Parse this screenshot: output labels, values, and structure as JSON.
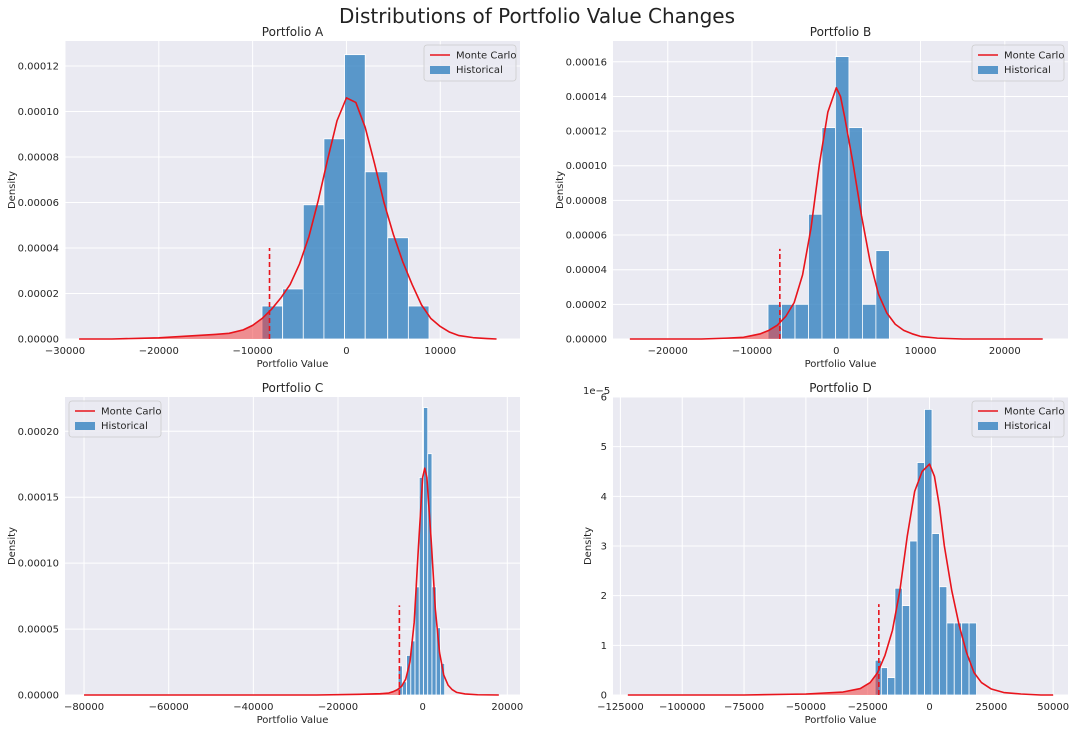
{
  "figure": {
    "title": "Distributions of Portfolio Value Changes"
  },
  "colors": {
    "plot_bg": "#eaeaf2",
    "grid": "#ffffff",
    "hist": "#2f7fbf",
    "kde": "#e8141c",
    "var_fill": "#f04040"
  },
  "chart_data": [
    {
      "type": "histogram+kde",
      "title": "Portfolio A",
      "xlabel": "Portfolio Value",
      "ylabel": "Density",
      "xlim": [
        -30000,
        18500
      ],
      "ylim": [
        0,
        0.000131
      ],
      "xticks": [
        -30000,
        -20000,
        -10000,
        0,
        10000
      ],
      "xtick_labels": [
        "−30000",
        "−20000",
        "−10000",
        "0",
        "10000"
      ],
      "yticks": [
        0,
        2e-05,
        4e-05,
        6e-05,
        8e-05,
        0.0001,
        0.00012
      ],
      "ytick_labels": [
        "0.00000",
        "0.00002",
        "0.00004",
        "0.00006",
        "0.00008",
        "0.00010",
        "0.00012"
      ],
      "legend": {
        "position": "top-right",
        "entries": [
          "Monte Carlo",
          "Historical"
        ]
      },
      "grid": true,
      "bins": [
        {
          "x0": -9000,
          "x1": -6800,
          "density": 1.45e-05
        },
        {
          "x0": -6800,
          "x1": -4600,
          "density": 2.2e-05
        },
        {
          "x0": -4600,
          "x1": -2400,
          "density": 5.9e-05
        },
        {
          "x0": -2400,
          "x1": -200,
          "density": 8.8e-05
        },
        {
          "x0": -200,
          "x1": 2000,
          "density": 0.000125
        },
        {
          "x0": 2000,
          "x1": 4400,
          "density": 7.35e-05
        },
        {
          "x0": 4400,
          "x1": 6600,
          "density": 4.45e-05
        },
        {
          "x0": 6600,
          "x1": 8800,
          "density": 1.45e-05
        }
      ],
      "kde": {
        "x": [
          -28500,
          -25000,
          -22000,
          -20000,
          -18000,
          -16000,
          -14000,
          -12500,
          -11000,
          -10000,
          -9000,
          -8000,
          -7000,
          -6000,
          -5000,
          -4000,
          -3000,
          -2000,
          -1000,
          0,
          1000,
          2000,
          3000,
          4000,
          5000,
          6000,
          7000,
          8000,
          9000,
          10000,
          11000,
          12000,
          13500,
          15000,
          16000
        ],
        "y": [
          0,
          0,
          3e-07,
          5e-07,
          1e-06,
          1.5e-06,
          2e-06,
          2.5e-06,
          4e-06,
          6e-06,
          9e-06,
          1.3e-05,
          1.8e-05,
          2.4e-05,
          3.3e-05,
          4.5e-05,
          6.1e-05,
          7.9e-05,
          9.6e-05,
          0.000106,
          0.000104,
          9.3e-05,
          7.7e-05,
          6e-05,
          4.6e-05,
          3.4e-05,
          2.4e-05,
          1.5e-05,
          9e-06,
          5.5e-06,
          3e-06,
          1.5e-06,
          6e-07,
          2e-07,
          0
        ]
      },
      "var_threshold": -8200,
      "var_line_height": 4e-05
    },
    {
      "type": "histogram+kde",
      "title": "Portfolio B",
      "xlabel": "Portfolio Value",
      "ylabel": "Density",
      "xlim": [
        -26500,
        27500
      ],
      "ylim": [
        0,
        0.000172
      ],
      "xticks": [
        -20000,
        -10000,
        0,
        10000,
        20000
      ],
      "xtick_labels": [
        "−20000",
        "−10000",
        "0",
        "10000",
        "20000"
      ],
      "yticks": [
        0,
        2e-05,
        4e-05,
        6e-05,
        8e-05,
        0.0001,
        0.00012,
        0.00014,
        0.00016
      ],
      "ytick_labels": [
        "0.00000",
        "0.00002",
        "0.00004",
        "0.00006",
        "0.00008",
        "0.00010",
        "0.00012",
        "0.00014",
        "0.00016"
      ],
      "legend": {
        "position": "top-right",
        "entries": [
          "Monte Carlo",
          "Historical"
        ]
      },
      "grid": true,
      "bins": [
        {
          "x0": -8100,
          "x1": -6500,
          "density": 2e-05
        },
        {
          "x0": -6500,
          "x1": -4900,
          "density": 2e-05
        },
        {
          "x0": -4900,
          "x1": -3300,
          "density": 2e-05
        },
        {
          "x0": -3300,
          "x1": -1700,
          "density": 7.2e-05
        },
        {
          "x0": -1700,
          "x1": -100,
          "density": 0.000122
        },
        {
          "x0": -100,
          "x1": 1500,
          "density": 0.000163
        },
        {
          "x0": 1500,
          "x1": 3100,
          "density": 0.000122
        },
        {
          "x0": 3100,
          "x1": 4700,
          "density": 2e-05
        },
        {
          "x0": 4700,
          "x1": 6300,
          "density": 5.1e-05
        }
      ],
      "kde": {
        "x": [
          -24500,
          -20000,
          -16000,
          -13000,
          -11000,
          -10000,
          -9000,
          -8000,
          -7000,
          -6000,
          -5000,
          -4000,
          -3000,
          -2000,
          -1000,
          0,
          500,
          1000,
          2000,
          3000,
          4000,
          5000,
          6000,
          7000,
          8000,
          9000,
          10000,
          12000,
          15000,
          20000,
          24500
        ],
        "y": [
          0,
          0,
          0,
          5e-07,
          1e-06,
          2e-06,
          3e-06,
          5e-06,
          8e-06,
          1.3e-05,
          2.1e-05,
          3.7e-05,
          6.4e-05,
          0.000101,
          0.000131,
          0.000145,
          0.00014,
          0.000128,
          0.000101,
          7.1e-05,
          4.5e-05,
          2.6e-05,
          1.5e-05,
          8.5e-06,
          5e-06,
          3e-06,
          1.5e-06,
          5e-07,
          0,
          0,
          0
        ]
      },
      "var_threshold": -6700,
      "var_line_height": 5.2e-05
    },
    {
      "type": "histogram+kde",
      "title": "Portfolio C",
      "xlabel": "Portfolio Value",
      "ylabel": "Density",
      "xlim": [
        -84500,
        23000
      ],
      "ylim": [
        0,
        0.000226
      ],
      "xticks": [
        -80000,
        -60000,
        -40000,
        -20000,
        0,
        20000
      ],
      "xtick_labels": [
        "−80000",
        "−60000",
        "−40000",
        "−20000",
        "0",
        "20000"
      ],
      "yticks": [
        0,
        5e-05,
        0.0001,
        0.00015,
        0.0002
      ],
      "ytick_labels": [
        "0.00000",
        "0.00005",
        "0.00010",
        "0.00015",
        "0.00020"
      ],
      "legend": {
        "position": "top-left",
        "entries": [
          "Monte Carlo",
          "Historical"
        ]
      },
      "grid": true,
      "bins": [
        {
          "x0": -5800,
          "x1": -4800,
          "density": 2.2e-05
        },
        {
          "x0": -4800,
          "x1": -3800,
          "density": 1e-05
        },
        {
          "x0": -3800,
          "x1": -2800,
          "density": 3e-05
        },
        {
          "x0": -2800,
          "x1": -1800,
          "density": 4.1e-05
        },
        {
          "x0": -1800,
          "x1": -800,
          "density": 8.2e-05
        },
        {
          "x0": -800,
          "x1": 200,
          "density": 0.000165
        },
        {
          "x0": 200,
          "x1": 1200,
          "density": 0.000218
        },
        {
          "x0": 1200,
          "x1": 2200,
          "density": 0.000183
        },
        {
          "x0": 2200,
          "x1": 3200,
          "density": 8.2e-05
        },
        {
          "x0": 3200,
          "x1": 4200,
          "density": 5.1e-05
        },
        {
          "x0": 4200,
          "x1": 5200,
          "density": 2.4e-05
        }
      ],
      "kde": {
        "x": [
          -80000,
          -60000,
          -40000,
          -25000,
          -15000,
          -10000,
          -8000,
          -7000,
          -6000,
          -5000,
          -4000,
          -3000,
          -2000,
          -1000,
          0,
          500,
          1000,
          2000,
          3000,
          4000,
          5000,
          6000,
          7000,
          8000,
          10000,
          13000,
          18000
        ],
        "y": [
          0,
          0,
          0,
          0,
          5e-07,
          1e-06,
          1.5e-06,
          2.5e-06,
          4e-06,
          6.5e-06,
          1.2e-05,
          2.5e-05,
          5.5e-05,
          0.000112,
          0.000165,
          0.000172,
          0.000165,
          0.000118,
          6.5e-05,
          3.2e-05,
          1.5e-05,
          7.5e-06,
          4e-06,
          2e-06,
          8e-07,
          2e-07,
          0
        ]
      },
      "var_threshold": -5500,
      "var_line_height": 6.8e-05
    },
    {
      "type": "histogram+kde",
      "title": "Portfolio D",
      "xlabel": "Portfolio Value",
      "ylabel": "Density",
      "offset_label": "1e−5",
      "xlim": [
        -128000,
        56000
      ],
      "ylim": [
        0,
        6e-05
      ],
      "xticks": [
        -125000,
        -100000,
        -75000,
        -50000,
        -25000,
        0,
        25000,
        50000
      ],
      "xtick_labels": [
        "−125000",
        "−100000",
        "−75000",
        "−50000",
        "−25000",
        "0",
        "25000",
        "50000"
      ],
      "yticks": [
        0,
        1e-05,
        2e-05,
        3e-05,
        4e-05,
        5e-05,
        6e-05
      ],
      "ytick_labels": [
        "0",
        "1",
        "2",
        "3",
        "4",
        "5",
        "6"
      ],
      "legend": {
        "position": "top-right",
        "entries": [
          "Monte Carlo",
          "Historical"
        ]
      },
      "grid": true,
      "bins": [
        {
          "x0": -22000,
          "x1": -19500,
          "density": 7e-06
        },
        {
          "x0": -19500,
          "x1": -17000,
          "density": 5.5e-06
        },
        {
          "x0": -17000,
          "x1": -14000,
          "density": 3.5e-06
        },
        {
          "x0": -14000,
          "x1": -11000,
          "density": 2.15e-05
        },
        {
          "x0": -11000,
          "x1": -8000,
          "density": 1.8e-05
        },
        {
          "x0": -8000,
          "x1": -5000,
          "density": 3.1e-05
        },
        {
          "x0": -5000,
          "x1": -2000,
          "density": 4.68e-05
        },
        {
          "x0": -2000,
          "x1": 1000,
          "density": 5.75e-05
        },
        {
          "x0": 1000,
          "x1": 4000,
          "density": 3.25e-05
        },
        {
          "x0": 4000,
          "x1": 7000,
          "density": 2.18e-05
        },
        {
          "x0": 7000,
          "x1": 10000,
          "density": 1.45e-05
        },
        {
          "x0": 10000,
          "x1": 13000,
          "density": 1.45e-05
        },
        {
          "x0": 13000,
          "x1": 16000,
          "density": 1.45e-05
        },
        {
          "x0": 16000,
          "x1": 19000,
          "density": 1.45e-05
        }
      ],
      "kde": {
        "x": [
          -122000,
          -100000,
          -75000,
          -50000,
          -35000,
          -28000,
          -24000,
          -21000,
          -18000,
          -15000,
          -12000,
          -9000,
          -6000,
          -3000,
          0,
          2000,
          4000,
          6000,
          9000,
          12000,
          15000,
          18000,
          21000,
          25000,
          30000,
          37000,
          45000,
          50000
        ],
        "y": [
          0,
          0,
          0,
          2e-07,
          6e-07,
          1.3e-06,
          2.5e-06,
          4.5e-06,
          8e-06,
          1.3e-05,
          2.1e-05,
          3.2e-05,
          4.1e-05,
          4.5e-05,
          4.65e-05,
          4.4e-05,
          3.8e-05,
          3e-05,
          2.1e-05,
          1.4e-05,
          8.5e-06,
          4.5e-06,
          2.5e-06,
          1.2e-06,
          5e-07,
          2e-07,
          0,
          0
        ]
      },
      "var_threshold": -20500,
      "var_line_height": 1.83e-05
    }
  ]
}
